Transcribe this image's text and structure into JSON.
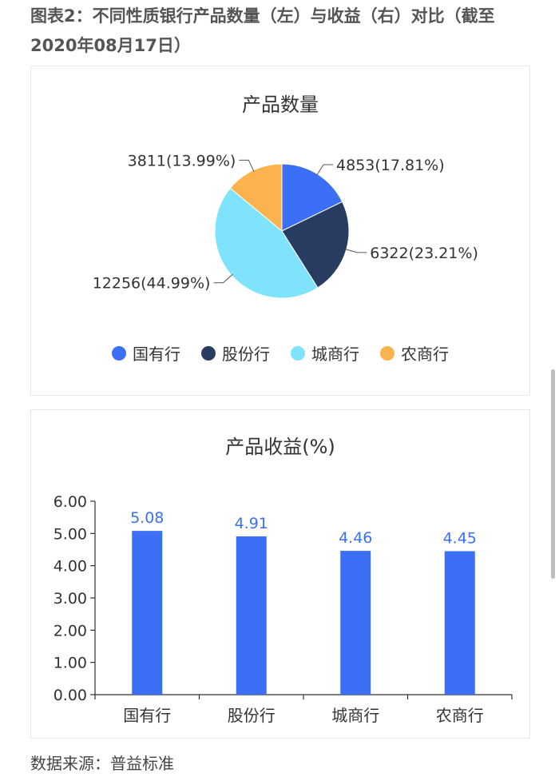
{
  "page": {
    "title": "图表2：不同性质银行产品数量（左）与收益（右）对比（截至2020年08月17日）",
    "source": "数据来源：普益标准"
  },
  "colors": {
    "guoyou": "#3b6ff6",
    "gufen": "#283c61",
    "chengshang": "#7ee3fb",
    "nongshang": "#fbb34f",
    "bar": "#3b6ff6",
    "bar_label": "#3b6ff6"
  },
  "chart_data": [
    {
      "type": "pie",
      "title": "产品数量",
      "categories": [
        "国有行",
        "股份行",
        "城商行",
        "农商行"
      ],
      "values": [
        4853,
        6322,
        12256,
        3811
      ],
      "percentages": [
        17.81,
        23.21,
        44.99,
        13.99
      ],
      "data_labels": [
        "4853(17.81%)",
        "6322(23.21%)",
        "12256(44.99%)",
        "3811(13.99%)"
      ],
      "legend_position": "bottom"
    },
    {
      "type": "bar",
      "title": "产品收益(%)",
      "categories": [
        "国有行",
        "股份行",
        "城商行",
        "农商行"
      ],
      "values": [
        5.08,
        4.91,
        4.46,
        4.45
      ],
      "data_labels": [
        "5.08",
        "4.91",
        "4.46",
        "4.45"
      ],
      "ylim": [
        0,
        6
      ],
      "yticks": [
        "0.00",
        "1.00",
        "2.00",
        "3.00",
        "4.00",
        "5.00",
        "6.00"
      ],
      "xlabel": "",
      "ylabel": "",
      "grid": false
    }
  ]
}
